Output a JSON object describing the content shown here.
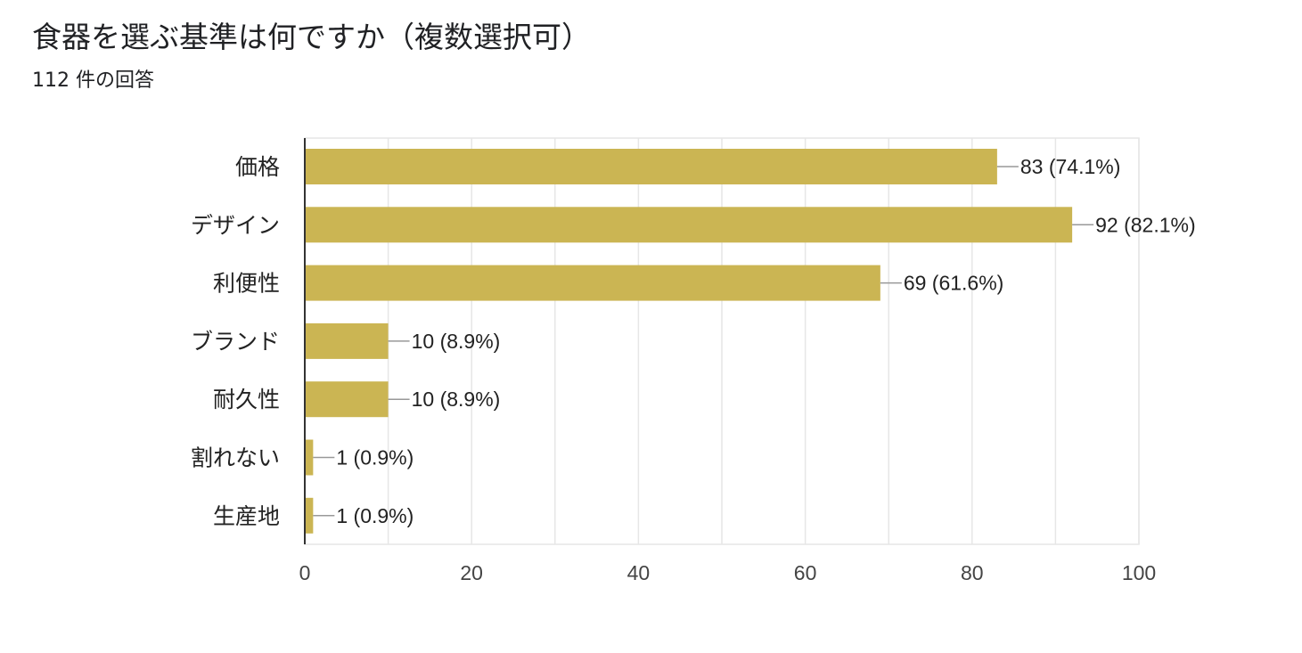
{
  "header": {
    "title": "食器を選ぶ基準は何ですか（複数選択可）",
    "subtitle": "112 件の回答"
  },
  "chart_data": {
    "type": "bar",
    "orientation": "horizontal",
    "title": "食器を選ぶ基準は何ですか（複数選択可）",
    "subtitle": "112 件の回答",
    "categories": [
      "価格",
      "デザイン",
      "利便性",
      "ブランド",
      "耐久性",
      "割れない",
      "生産地"
    ],
    "values": [
      83,
      92,
      69,
      10,
      10,
      1,
      1
    ],
    "data_labels": [
      "83 (74.1%)",
      "92 (82.1%)",
      "69 (61.6%)",
      "10 (8.9%)",
      "10 (8.9%)",
      "1 (0.9%)",
      "1 (0.9%)"
    ],
    "xlim": [
      0,
      100
    ],
    "x_ticks": [
      0,
      20,
      40,
      60,
      80,
      100
    ],
    "grid": true,
    "colors": {
      "bar": "#cbb553",
      "grid": "#e6e6e6",
      "axis": "#333333",
      "leader": "#999999"
    }
  }
}
